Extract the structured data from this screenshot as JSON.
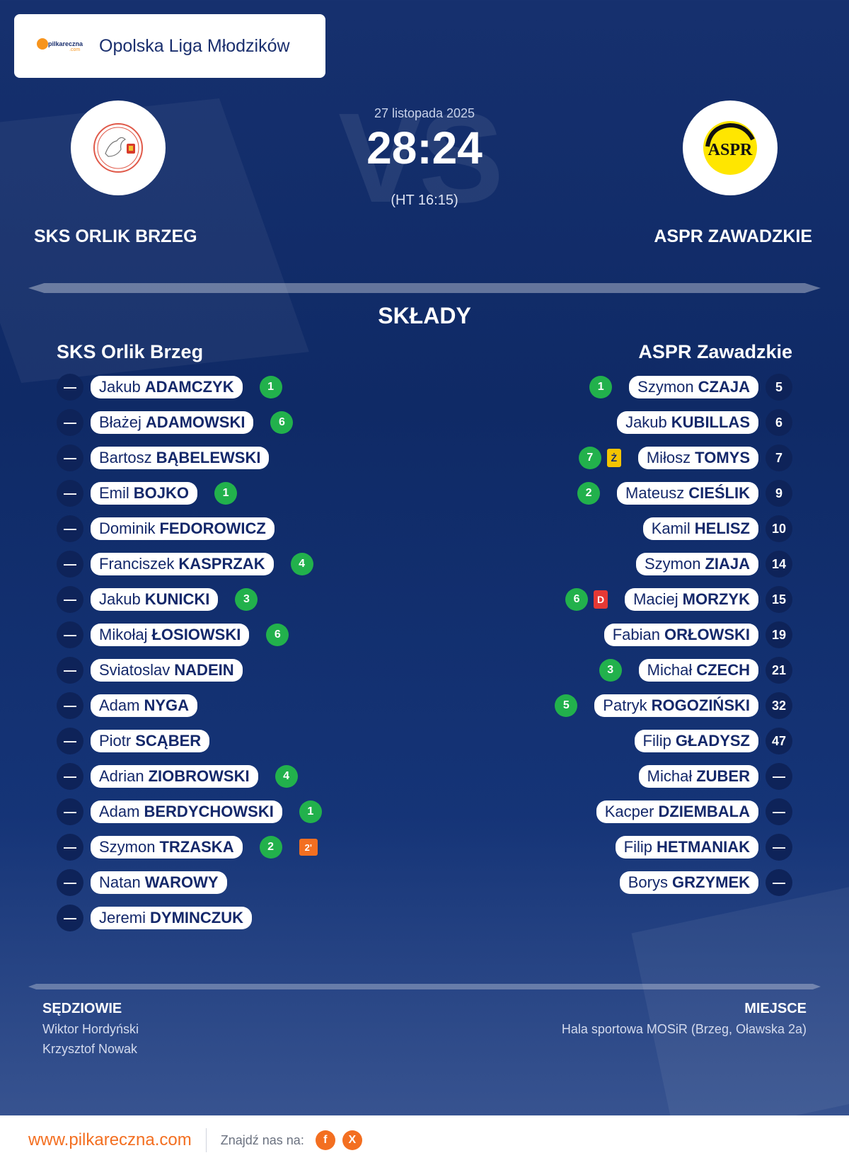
{
  "league": {
    "name": "Opolska Liga Młodzików",
    "logo_text": "pilkareczna",
    "logo_sub": ".com"
  },
  "match": {
    "date": "27 listopada 2025",
    "score": "28:24",
    "halftime": "(HT 16:15)",
    "vs_watermark": "VS"
  },
  "home": {
    "name_upper": "SKS ORLIK BRZEG",
    "name": "SKS Orlik Brzeg"
  },
  "away": {
    "name_upper": "ASPR ZAWADZKIE",
    "name": "ASPR Zawadzkie",
    "crest_text": "ASPR"
  },
  "lineups_title": "SKŁADY",
  "home_players": [
    {
      "num": "—",
      "first": "Jakub",
      "last": "ADAMCZYK",
      "goals": "1"
    },
    {
      "num": "—",
      "first": "Błażej",
      "last": "ADAMOWSKI",
      "goals": "6"
    },
    {
      "num": "—",
      "first": "Bartosz",
      "last": "BĄBELEWSKI"
    },
    {
      "num": "—",
      "first": "Emil",
      "last": "BOJKO",
      "goals": "1"
    },
    {
      "num": "—",
      "first": "Dominik",
      "last": "FEDOROWICZ"
    },
    {
      "num": "—",
      "first": "Franciszek",
      "last": "KASPRZAK",
      "goals": "4"
    },
    {
      "num": "—",
      "first": "Jakub",
      "last": "KUNICKI",
      "goals": "3"
    },
    {
      "num": "—",
      "first": "Mikołaj",
      "last": "ŁOSIOWSKI",
      "goals": "6"
    },
    {
      "num": "—",
      "first": "Sviatoslav",
      "last": "NADEIN"
    },
    {
      "num": "—",
      "first": "Adam",
      "last": "NYGA"
    },
    {
      "num": "—",
      "first": "Piotr",
      "last": "SCĄBER"
    },
    {
      "num": "—",
      "first": "Adrian",
      "last": "ZIOBROWSKI",
      "goals": "4"
    },
    {
      "num": "—",
      "first": "Adam",
      "last": "BERDYCHOWSKI",
      "goals": "1"
    },
    {
      "num": "—",
      "first": "Szymon",
      "last": "TRZASKA",
      "goals": "2",
      "suspension": "2'"
    },
    {
      "num": "—",
      "first": "Natan",
      "last": "WAROWY"
    },
    {
      "num": "—",
      "first": "Jeremi",
      "last": "DYMINCZUK"
    }
  ],
  "away_players": [
    {
      "num": "5",
      "first": "Szymon",
      "last": "CZAJA",
      "goals": "1"
    },
    {
      "num": "6",
      "first": "Jakub",
      "last": "KUBILLAS"
    },
    {
      "num": "7",
      "first": "Miłosz",
      "last": "TOMYS",
      "goals": "7",
      "card": "Ż",
      "card_type": "yellow"
    },
    {
      "num": "9",
      "first": "Mateusz",
      "last": "CIEŚLIK",
      "goals": "2"
    },
    {
      "num": "10",
      "first": "Kamil",
      "last": "HELISZ"
    },
    {
      "num": "14",
      "first": "Szymon",
      "last": "ZIAJA"
    },
    {
      "num": "15",
      "first": "Maciej",
      "last": "MORZYK",
      "goals": "6",
      "card": "D",
      "card_type": "red"
    },
    {
      "num": "19",
      "first": "Fabian",
      "last": "ORŁOWSKI"
    },
    {
      "num": "21",
      "first": "Michał",
      "last": "CZECH",
      "goals": "3"
    },
    {
      "num": "32",
      "first": "Patryk",
      "last": "ROGOZIŃSKI",
      "goals": "5"
    },
    {
      "num": "47",
      "first": "Filip",
      "last": "GŁADYSZ"
    },
    {
      "num": "—",
      "first": "Michał",
      "last": "ZUBER"
    },
    {
      "num": "—",
      "first": "Kacper",
      "last": "DZIEMBALA"
    },
    {
      "num": "—",
      "first": "Filip",
      "last": "HETMANIAK"
    },
    {
      "num": "—",
      "first": "Borys",
      "last": "GRZYMEK"
    }
  ],
  "referees": {
    "title": "SĘDZIOWIE",
    "names": [
      "Wiktor Hordyński",
      "Krzysztof Nowak"
    ]
  },
  "venue": {
    "title": "MIEJSCE",
    "name": "Hala sportowa MOSiR (Brzeg, Oławska 2a)"
  },
  "footer": {
    "site": "www.pilkareczna.com",
    "find_us": "Znajdź nas na:",
    "social": [
      {
        "icon": "facebook-icon",
        "glyph": "f"
      },
      {
        "icon": "x-icon",
        "glyph": "X"
      }
    ]
  },
  "colors": {
    "accent": "#f36f21",
    "goal": "#22b14c",
    "yellow_card": "#f5c400",
    "red_card": "#e53935",
    "navy": "#14286a"
  }
}
